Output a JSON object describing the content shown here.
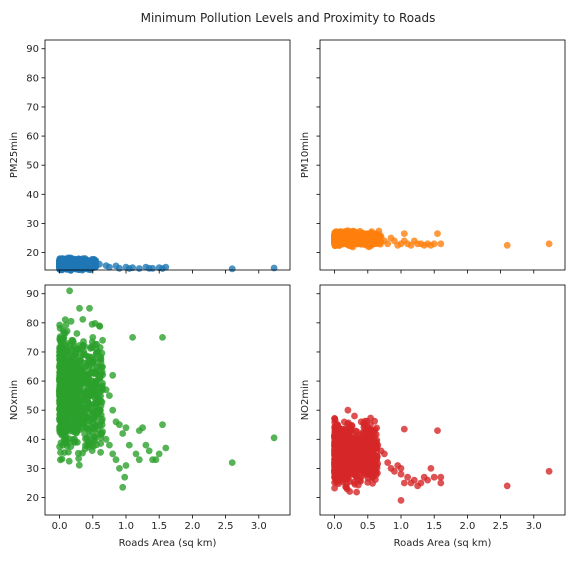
{
  "chart_data": {
    "type": "scatter",
    "title": "Minimum Pollution Levels and Proximity to Roads",
    "sharex": true,
    "sharey": true,
    "xlim": [
      -0.22,
      3.47
    ],
    "ylim": [
      14,
      93
    ],
    "xticks": [
      0.0,
      0.5,
      1.0,
      1.5,
      2.0,
      2.5,
      3.0
    ],
    "xtick_labels": [
      "0.0",
      "0.5",
      "1.0",
      "1.5",
      "2.0",
      "2.5",
      "3.0"
    ],
    "yticks": [
      20,
      30,
      40,
      50,
      60,
      70,
      80,
      90
    ],
    "ytick_labels": [
      "20",
      "30",
      "40",
      "50",
      "60",
      "70",
      "80",
      "90"
    ],
    "xlabel": "Roads Area (sq km)",
    "grid": false,
    "panels": [
      {
        "ylabel": "PM25min",
        "color": "#1f77b4",
        "cluster": {
          "x_range": [
            0,
            0.55
          ],
          "y_range": [
            13.5,
            18.5
          ]
        },
        "points": [
          [
            0.6,
            16
          ],
          [
            0.7,
            15.5
          ],
          [
            0.75,
            15
          ],
          [
            0.85,
            15.4
          ],
          [
            0.9,
            14.6
          ],
          [
            1.0,
            15
          ],
          [
            1.05,
            14.5
          ],
          [
            1.1,
            14.8
          ],
          [
            1.2,
            14.5
          ],
          [
            1.3,
            15
          ],
          [
            1.35,
            14.6
          ],
          [
            1.4,
            14.6
          ],
          [
            1.5,
            14.8
          ],
          [
            1.55,
            14.5
          ],
          [
            1.6,
            15
          ],
          [
            2.6,
            14.4
          ],
          [
            3.23,
            14.7
          ]
        ]
      },
      {
        "ylabel": "PM10min",
        "color": "#ff7f0e",
        "cluster": {
          "x_range": [
            0,
            0.7
          ],
          "y_range": [
            21.5,
            28
          ]
        },
        "points": [
          [
            0.75,
            24
          ],
          [
            0.8,
            23
          ],
          [
            0.85,
            25
          ],
          [
            0.9,
            24
          ],
          [
            0.95,
            22.5
          ],
          [
            1.0,
            23
          ],
          [
            1.05,
            24
          ],
          [
            1.05,
            26.5
          ],
          [
            1.1,
            23
          ],
          [
            1.15,
            22.5
          ],
          [
            1.2,
            24
          ],
          [
            1.25,
            23
          ],
          [
            1.3,
            23
          ],
          [
            1.35,
            22.5
          ],
          [
            1.4,
            23
          ],
          [
            1.45,
            22.5
          ],
          [
            1.5,
            23
          ],
          [
            1.55,
            26.5
          ],
          [
            1.6,
            23
          ],
          [
            2.6,
            22.5
          ],
          [
            3.23,
            23
          ]
        ]
      },
      {
        "ylabel": "NOxmin",
        "color": "#2ca02c",
        "cluster": {
          "x_range": [
            0,
            0.65
          ],
          "y_range": [
            27,
            85
          ]
        },
        "points": [
          [
            0.15,
            91
          ],
          [
            0.3,
            85
          ],
          [
            0.45,
            85
          ],
          [
            0.6,
            79
          ],
          [
            0.5,
            75
          ],
          [
            0.55,
            71
          ],
          [
            0.6,
            65
          ],
          [
            0.8,
            62
          ],
          [
            0.7,
            57
          ],
          [
            0.75,
            55
          ],
          [
            0.8,
            50
          ],
          [
            0.85,
            46
          ],
          [
            0.9,
            45
          ],
          [
            0.95,
            42
          ],
          [
            0.7,
            40
          ],
          [
            0.75,
            38
          ],
          [
            0.8,
            35
          ],
          [
            0.85,
            33
          ],
          [
            0.9,
            30
          ],
          [
            1.0,
            44
          ],
          [
            1.05,
            38
          ],
          [
            1.0,
            31
          ],
          [
            0.98,
            27
          ],
          [
            0.95,
            23.5
          ],
          [
            1.15,
            35
          ],
          [
            1.2,
            43
          ],
          [
            1.25,
            44
          ],
          [
            1.3,
            38
          ],
          [
            1.35,
            36
          ],
          [
            1.4,
            33
          ],
          [
            1.45,
            33
          ],
          [
            1.5,
            35
          ],
          [
            1.55,
            45
          ],
          [
            1.6,
            37
          ],
          [
            1.2,
            33
          ],
          [
            1.1,
            75
          ],
          [
            1.55,
            75
          ],
          [
            2.6,
            32
          ],
          [
            3.23,
            40.5
          ]
        ]
      },
      {
        "ylabel": "NO2min",
        "color": "#d62728",
        "cluster": {
          "x_range": [
            0,
            0.65
          ],
          "y_range": [
            21,
            49
          ]
        },
        "points": [
          [
            0.2,
            50
          ],
          [
            0.3,
            48
          ],
          [
            0.4,
            46
          ],
          [
            0.45,
            45
          ],
          [
            0.6,
            41
          ],
          [
            0.65,
            38
          ],
          [
            0.7,
            36
          ],
          [
            0.75,
            35
          ],
          [
            0.8,
            32
          ],
          [
            0.85,
            30
          ],
          [
            0.9,
            29
          ],
          [
            0.95,
            31
          ],
          [
            1.0,
            28
          ],
          [
            1.05,
            43.5
          ],
          [
            1.0,
            30
          ],
          [
            1.05,
            25
          ],
          [
            1.0,
            19
          ],
          [
            1.1,
            27
          ],
          [
            1.15,
            25
          ],
          [
            1.2,
            26
          ],
          [
            1.25,
            24
          ],
          [
            1.3,
            25
          ],
          [
            1.35,
            27
          ],
          [
            1.4,
            26
          ],
          [
            1.45,
            30
          ],
          [
            1.5,
            27
          ],
          [
            1.55,
            43
          ],
          [
            1.6,
            27
          ],
          [
            1.6,
            25
          ],
          [
            2.6,
            24
          ],
          [
            3.23,
            29
          ]
        ]
      }
    ]
  }
}
